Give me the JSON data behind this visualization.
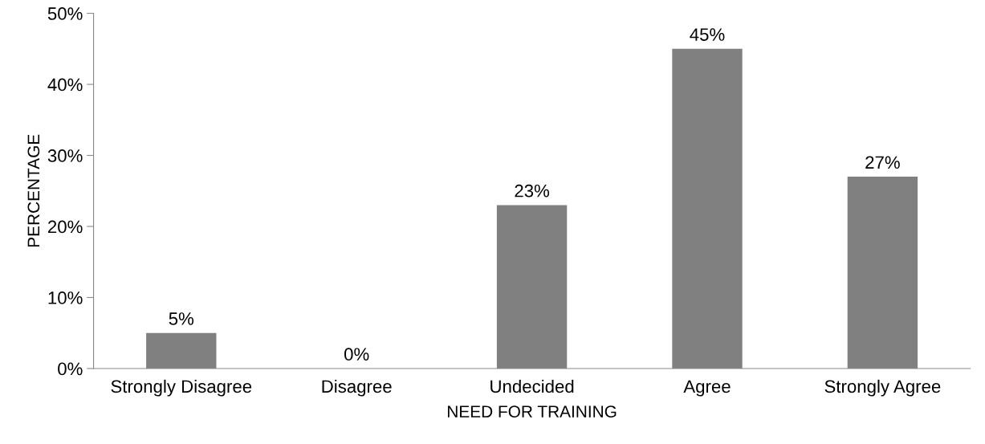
{
  "chart_data": {
    "type": "bar",
    "xlabel": "NEED FOR TRAINING",
    "ylabel": "PERCENTAGE",
    "categories": [
      "Strongly Disagree",
      "Disagree",
      "Undecided",
      "Agree",
      "Strongly Agree"
    ],
    "values": [
      5,
      0,
      23,
      45,
      27
    ],
    "color": "#808080",
    "value_labels": [
      "5%",
      "0%",
      "23%",
      "45%",
      "27%"
    ],
    "ylim": [
      0,
      50
    ],
    "yticks": [
      {
        "value": 0,
        "label": "0%"
      },
      {
        "value": 10,
        "label": "10%"
      },
      {
        "value": 20,
        "label": "20%"
      },
      {
        "value": 30,
        "label": "30%"
      },
      {
        "value": 40,
        "label": "40%"
      },
      {
        "value": 50,
        "label": "50%"
      }
    ],
    "grid": false,
    "legend": false
  }
}
